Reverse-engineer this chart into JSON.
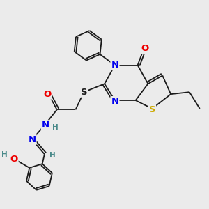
{
  "background_color": "#ebebeb",
  "bond_color": "#1a1a1a",
  "atom_colors": {
    "N": "#0000ee",
    "O": "#ee0000",
    "S_thio": "#ccaa00",
    "S_sulfanyl": "#1a1a1a",
    "H": "#4a8a8a",
    "C": "#1a1a1a"
  },
  "lw": 1.3
}
